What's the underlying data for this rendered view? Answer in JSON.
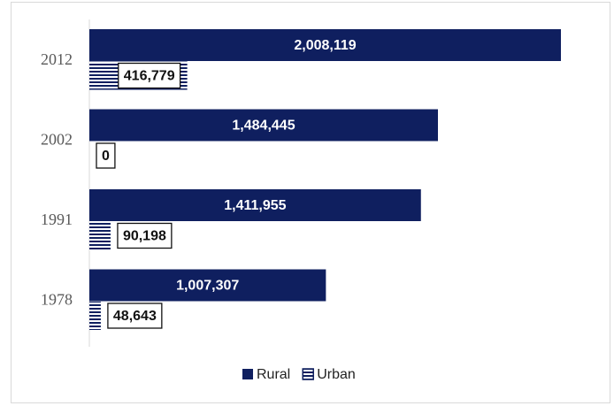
{
  "chart_data": {
    "type": "bar",
    "orientation": "horizontal",
    "categories": [
      "2012",
      "2002",
      "1991",
      "1978"
    ],
    "series": [
      {
        "name": "Rural",
        "color": "#0f1f5f",
        "values": [
          2008119,
          1484445,
          1411955,
          1007307
        ],
        "value_labels": [
          "2,008,119",
          "1,484,445",
          "1,411,955",
          "1,007,307"
        ]
      },
      {
        "name": "Urban",
        "color": "#0f1f5f",
        "pattern": "horizontal-stripes",
        "values": [
          416779,
          0,
          90198,
          48643
        ],
        "value_labels": [
          "416,779",
          "0",
          "90,198",
          "48,643"
        ]
      }
    ],
    "legend": "bottom"
  }
}
